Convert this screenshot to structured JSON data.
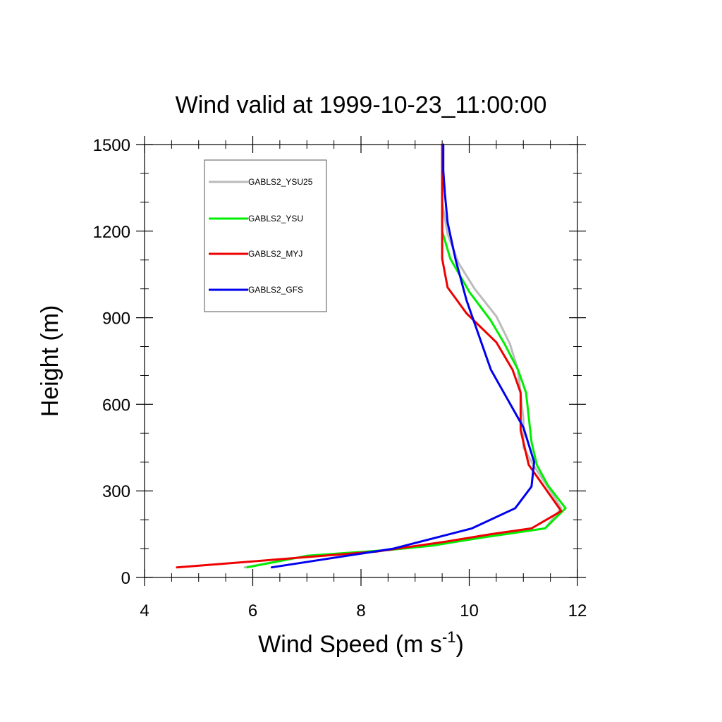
{
  "chart_data": {
    "type": "line",
    "title": "Wind valid at 1999-10-23_11:00:00",
    "xlabel_main": "Wind Speed (m s",
    "xlabel_sup": "-1",
    "xlabel_close": ")",
    "ylabel": "Height (m)",
    "xlim": [
      4,
      12
    ],
    "ylim": [
      0,
      1500
    ],
    "xticks": [
      4,
      6,
      8,
      10,
      12
    ],
    "yticks": [
      0,
      300,
      600,
      900,
      1200,
      1500
    ],
    "legend_position": "top-left",
    "series": [
      {
        "name": "GABLS2_YSU25",
        "color": "#bbbbbb",
        "points": [
          [
            5.85,
            35
          ],
          [
            7.0,
            75
          ],
          [
            8.5,
            95
          ],
          [
            9.3,
            110
          ],
          [
            10.3,
            140
          ],
          [
            11.4,
            170
          ],
          [
            11.7,
            240
          ],
          [
            11.5,
            300
          ],
          [
            11.2,
            385
          ],
          [
            11.0,
            450
          ],
          [
            11.0,
            550
          ],
          [
            10.9,
            720
          ],
          [
            10.75,
            810
          ],
          [
            10.5,
            905
          ],
          [
            10.1,
            1000
          ],
          [
            9.8,
            1090
          ],
          [
            9.6,
            1190
          ],
          [
            9.5,
            1300
          ],
          [
            9.5,
            1500
          ]
        ]
      },
      {
        "name": "GABLS2_YSU",
        "color": "#00ee00",
        "points": [
          [
            5.9,
            35
          ],
          [
            7.0,
            75
          ],
          [
            8.5,
            95
          ],
          [
            9.3,
            110
          ],
          [
            10.3,
            140
          ],
          [
            11.4,
            170
          ],
          [
            11.78,
            240
          ],
          [
            11.45,
            320
          ],
          [
            11.25,
            390
          ],
          [
            11.15,
            470
          ],
          [
            11.05,
            640
          ],
          [
            10.9,
            720
          ],
          [
            10.65,
            810
          ],
          [
            10.4,
            890
          ],
          [
            10.0,
            990
          ],
          [
            9.65,
            1105
          ],
          [
            9.5,
            1200
          ],
          [
            9.5,
            1300
          ],
          [
            9.5,
            1500
          ]
        ]
      },
      {
        "name": "GABLS2_MYJ",
        "color": "#ee0000",
        "points": [
          [
            4.6,
            35
          ],
          [
            8.3,
            90
          ],
          [
            9.6,
            125
          ],
          [
            10.4,
            150
          ],
          [
            11.15,
            170
          ],
          [
            11.7,
            230
          ],
          [
            11.4,
            310
          ],
          [
            11.1,
            390
          ],
          [
            10.95,
            510
          ],
          [
            10.95,
            640
          ],
          [
            10.8,
            720
          ],
          [
            10.5,
            815
          ],
          [
            9.95,
            915
          ],
          [
            9.6,
            1005
          ],
          [
            9.5,
            1105
          ],
          [
            9.5,
            1300
          ],
          [
            9.5,
            1500
          ]
        ]
      },
      {
        "name": "GABLS2_GFS",
        "color": "#0000ee",
        "points": [
          [
            6.35,
            35
          ],
          [
            8.6,
            100
          ],
          [
            10.05,
            170
          ],
          [
            10.85,
            240
          ],
          [
            11.15,
            315
          ],
          [
            11.2,
            400
          ],
          [
            11.0,
            520
          ],
          [
            10.4,
            720
          ],
          [
            9.95,
            960
          ],
          [
            9.75,
            1100
          ],
          [
            9.6,
            1230
          ],
          [
            9.55,
            1330
          ],
          [
            9.52,
            1410
          ],
          [
            9.52,
            1500
          ]
        ]
      }
    ]
  }
}
